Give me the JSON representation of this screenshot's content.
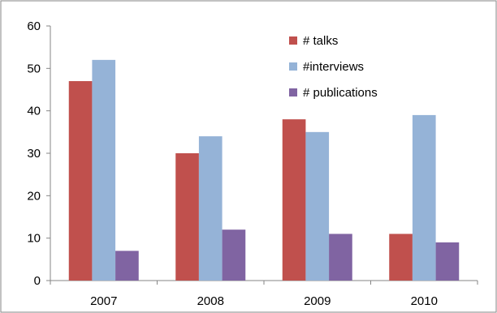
{
  "chart_data": {
    "type": "bar",
    "categories": [
      "2007",
      "2008",
      "2009",
      "2010"
    ],
    "series": [
      {
        "name": "# talks",
        "values": [
          47,
          30,
          38,
          11
        ],
        "color": "#c0504d"
      },
      {
        "name": "#interviews",
        "values": [
          52,
          34,
          35,
          39
        ],
        "color": "#95b3d7"
      },
      {
        "name": "# publications",
        "values": [
          7,
          12,
          11,
          9
        ],
        "color": "#8064a2"
      }
    ],
    "y_ticks": [
      "0",
      "10",
      "20",
      "30",
      "40",
      "50",
      "60"
    ],
    "ylim": [
      0,
      60
    ],
    "grid": false,
    "legend_position": "top-right",
    "title": "",
    "xlabel": "",
    "ylabel": ""
  }
}
